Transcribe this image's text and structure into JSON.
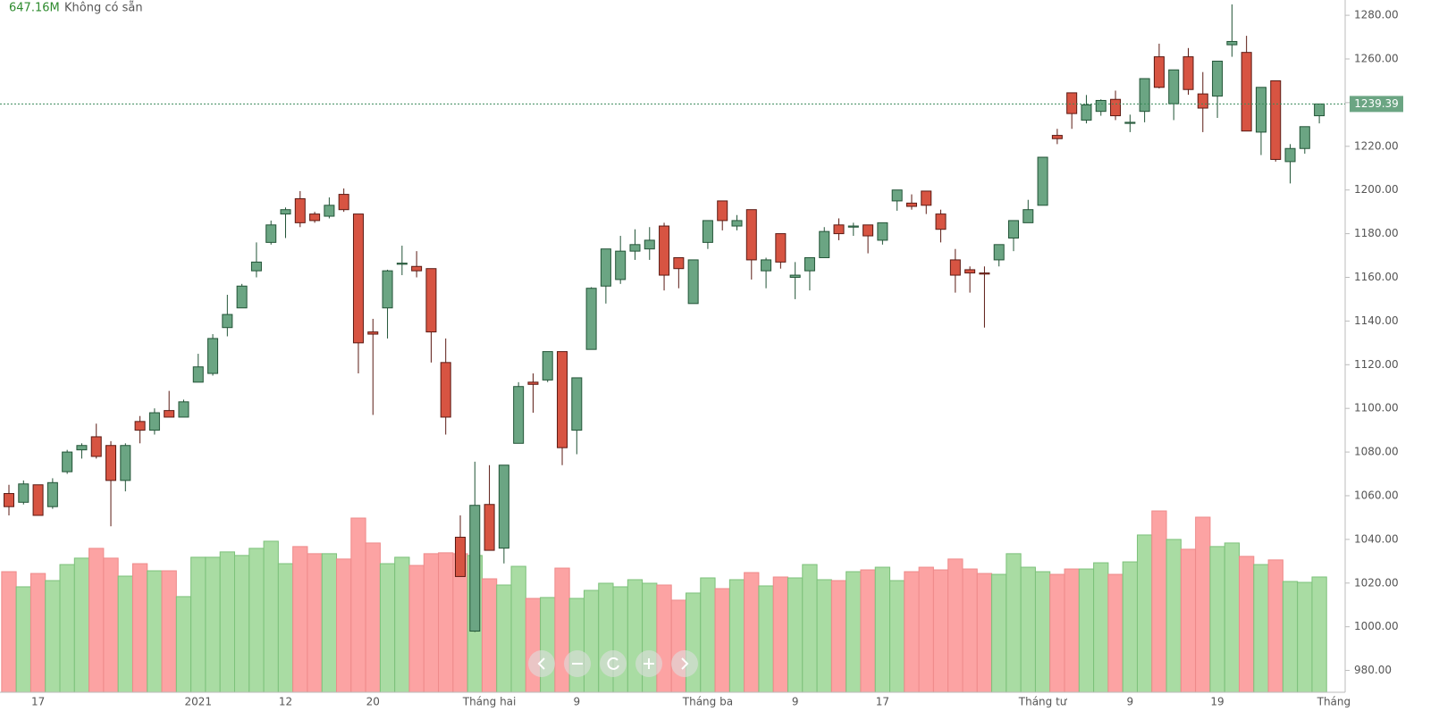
{
  "chart_data": {
    "type": "candlestick",
    "volume_value_label": "647.16M",
    "status": "Không có sẵn",
    "categories": [
      null,
      null,
      "17",
      null,
      null,
      null,
      null,
      null,
      null,
      null,
      null,
      null,
      null,
      "2021",
      null,
      null,
      null,
      null,
      null,
      "12",
      null,
      null,
      null,
      null,
      null,
      "20",
      null,
      null,
      null,
      null,
      null,
      null,
      null,
      "Tháng hai",
      null,
      null,
      null,
      null,
      null,
      "9",
      null,
      null,
      null,
      null,
      null,
      null,
      null,
      null,
      "Tháng ba",
      null,
      null,
      null,
      null,
      null,
      "9",
      null,
      null,
      null,
      null,
      null,
      "17",
      null,
      null,
      null,
      null,
      null,
      null,
      null,
      null,
      null,
      null,
      "Tháng tư",
      null,
      null,
      null,
      null,
      null,
      "9",
      null,
      null,
      null,
      null,
      null,
      "19",
      null,
      null,
      null,
      null,
      null,
      null,
      null,
      "Tháng"
    ],
    "open": [
      1061,
      1057,
      1065,
      1055,
      1071,
      1081,
      1087,
      1083,
      1067,
      1094,
      1090,
      1099,
      1096,
      1112,
      1116,
      1137,
      1146,
      1163,
      1176,
      1189,
      1196,
      1189,
      1188,
      1198,
      1189,
      1135,
      1146,
      1166,
      1165,
      1164,
      1121,
      1041,
      998,
      1056,
      1036,
      1084,
      1112,
      1113,
      1126,
      1090,
      1127,
      1156,
      1159,
      1172,
      1173,
      1183.5,
      1169,
      1148,
      1176,
      1195,
      1183.5,
      1191,
      1163,
      1180,
      1160,
      1163,
      1169,
      1184,
      1183,
      1184,
      1177,
      1195,
      1194,
      1199.5,
      1189,
      1168,
      1163.5,
      1162,
      1168,
      1178,
      1185,
      1193,
      1225,
      1244.5,
      1232,
      1236,
      1241.5,
      1230.5,
      1236,
      1261,
      1239.5,
      1261,
      1244,
      1243,
      1266.5,
      1263,
      1226.5,
      1250,
      1213,
      1219,
      1234,
      null
    ],
    "high": [
      1065,
      1067,
      1065,
      1068,
      1081,
      1084,
      1093,
      1085,
      1084,
      1096.5,
      1100,
      1108,
      1104,
      1125,
      1134,
      1152,
      1157,
      1176,
      1186,
      1192,
      1199.5,
      1190,
      1196.6,
      1200.7,
      1189,
      1141,
      1163.5,
      1174.5,
      1172,
      1164,
      1132,
      1051,
      1075.6,
      1074,
      1074,
      1112,
      1116,
      1126,
      1126,
      1114,
      1155.5,
      1173,
      1179,
      1182,
      1183,
      1185,
      1169,
      1168,
      1186,
      1195,
      1188.5,
      1191,
      1169,
      1180,
      1167,
      1169,
      1183,
      1187,
      1185,
      1184,
      1185,
      1200,
      1198,
      1199.5,
      1191,
      1173,
      1165,
      1165,
      1175,
      1186,
      1195.5,
      1215,
      1228,
      1244.5,
      1243.5,
      1241.5,
      1245.5,
      1234.5,
      1251,
      1267,
      1255,
      1265,
      1254,
      1259,
      1285,
      1270.6,
      1247,
      1250,
      1221,
      1229,
      1239.39,
      null
    ],
    "low": [
      1051,
      1056,
      1051,
      1054,
      1070,
      1077,
      1077,
      1046,
      1062,
      1084,
      1088,
      1096,
      1096,
      1112,
      1115,
      1133,
      1146,
      1160,
      1175,
      1178,
      1183,
      1185,
      1187,
      1190,
      1116,
      1097,
      1132,
      1161,
      1160,
      1121,
      1088,
      1023,
      997.6,
      1035,
      1029,
      1084,
      1098,
      1112,
      1074,
      1079,
      1127,
      1148,
      1157,
      1168,
      1168,
      1154,
      1155,
      1148,
      1173,
      1181.5,
      1181.5,
      1159,
      1155,
      1164,
      1150,
      1154,
      1169,
      1177,
      1179,
      1171,
      1175,
      1190.5,
      1191,
      1189,
      1176,
      1153,
      1153,
      1137,
      1165,
      1172,
      1185,
      1193,
      1221,
      1228,
      1230.5,
      1234,
      1232,
      1226.5,
      1231,
      1246.5,
      1232,
      1243.6,
      1226.5,
      1233,
      1261,
      1227,
      1216,
      1213,
      1203,
      1216.6,
      1230.5,
      null
    ],
    "close": [
      1055,
      1065.4,
      1051,
      1066,
      1080,
      1083,
      1078,
      1067,
      1083,
      1090,
      1098,
      1096,
      1103,
      1119,
      1132,
      1143,
      1156,
      1167,
      1184,
      1191,
      1185,
      1186,
      1193,
      1191,
      1130,
      1134,
      1163,
      1166.5,
      1163,
      1135,
      1096,
      1023,
      1055.6,
      1035,
      1074,
      1110,
      1111,
      1126,
      1082,
      1114,
      1155,
      1173,
      1172,
      1175,
      1177,
      1161,
      1164,
      1168,
      1186,
      1186,
      1186,
      1168,
      1168,
      1167,
      1161,
      1169,
      1181,
      1180,
      1183.5,
      1179,
      1185,
      1200,
      1192.5,
      1193,
      1182,
      1161,
      1162,
      1161.5,
      1175,
      1186,
      1191,
      1215,
      1223.5,
      1235,
      1239,
      1241,
      1234,
      1231,
      1251,
      1247,
      1255,
      1246,
      1237.5,
      1259,
      1268,
      1227,
      1247,
      1214,
      1219,
      1229,
      1239.39,
      null
    ],
    "volume": [
      677,
      592,
      667,
      627,
      717,
      753,
      808,
      753,
      652,
      722,
      682,
      682,
      537,
      758,
      758,
      788,
      768,
      808,
      848,
      722,
      818,
      778,
      778,
      748,
      978,
      838,
      722,
      758,
      712,
      778,
      783,
      778,
      768,
      637,
      602,
      707,
      527,
      532,
      697,
      527,
      572,
      612,
      592,
      632,
      612,
      602,
      517,
      557,
      642,
      582,
      632,
      672,
      597,
      647,
      642,
      717,
      632,
      627,
      677,
      687,
      702,
      627,
      677,
      702,
      687,
      748,
      692,
      667,
      662,
      778,
      702,
      677,
      662,
      692,
      692,
      727,
      662,
      732,
      883,
      1018,
      858,
      803,
      983,
      818,
      838,
      763,
      717,
      743,
      622,
      617,
      647.16,
      null
    ],
    "up_color": "#6ba583",
    "down_color": "#d75442",
    "volume_up_color": "#a9dca3",
    "volume_down_color": "#fca3a3",
    "ylim": [
      970,
      1287
    ],
    "yticks": [
      {
        "value": 980,
        "label": "980.00"
      },
      {
        "value": 1000,
        "label": "1000.00"
      },
      {
        "value": 1020,
        "label": "1020.00"
      },
      {
        "value": 1040,
        "label": "1040.00"
      },
      {
        "value": 1060,
        "label": "1060.00"
      },
      {
        "value": 1080,
        "label": "1080.00"
      },
      {
        "value": 1100,
        "label": "1100.00"
      },
      {
        "value": 1120,
        "label": "1120.00"
      },
      {
        "value": 1140,
        "label": "1140.00"
      },
      {
        "value": 1160,
        "label": "1160.00"
      },
      {
        "value": 1180,
        "label": "1180.00"
      },
      {
        "value": 1200,
        "label": "1200.00"
      },
      {
        "value": 1220,
        "label": "1220.00"
      },
      {
        "value": 1240,
        "label": "1240.00"
      },
      {
        "value": 1260,
        "label": "1260.00"
      },
      {
        "value": 1280,
        "label": "1280.00"
      }
    ]
  }
}
